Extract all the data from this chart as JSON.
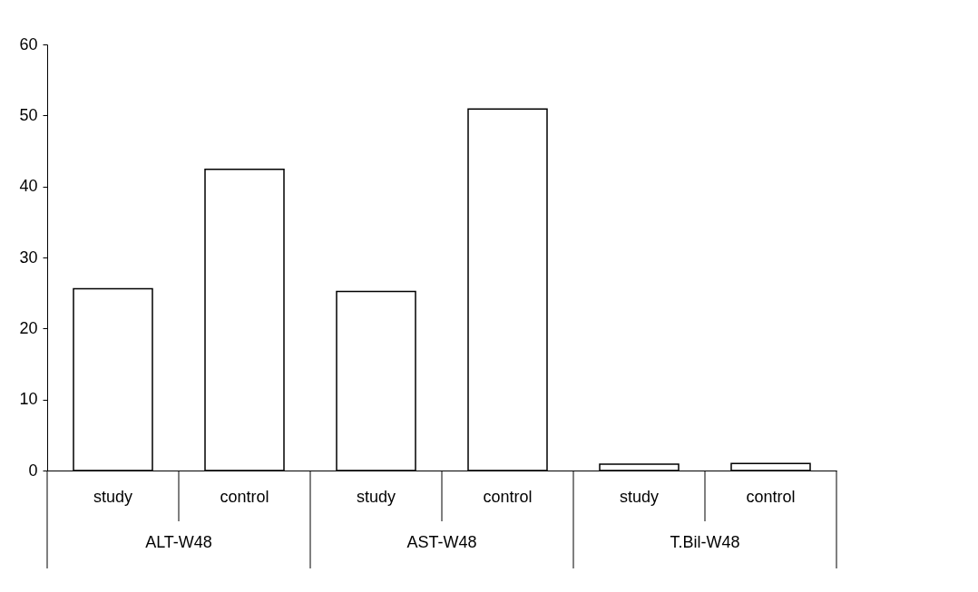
{
  "chart_data": {
    "type": "bar",
    "categories": [
      "study",
      "control",
      "study",
      "control",
      "study",
      "control"
    ],
    "annotations": [
      "ALT-W48",
      "AST-W48",
      "T.Bil-W48"
    ],
    "values": [
      25.6,
      42.4,
      25.2,
      50.9,
      0.9,
      1.0
    ],
    "color": "#ffffff",
    "ylim": [
      0,
      60
    ],
    "yticks": [
      0,
      10,
      20,
      30,
      40,
      50,
      60
    ],
    "grid": false
  }
}
